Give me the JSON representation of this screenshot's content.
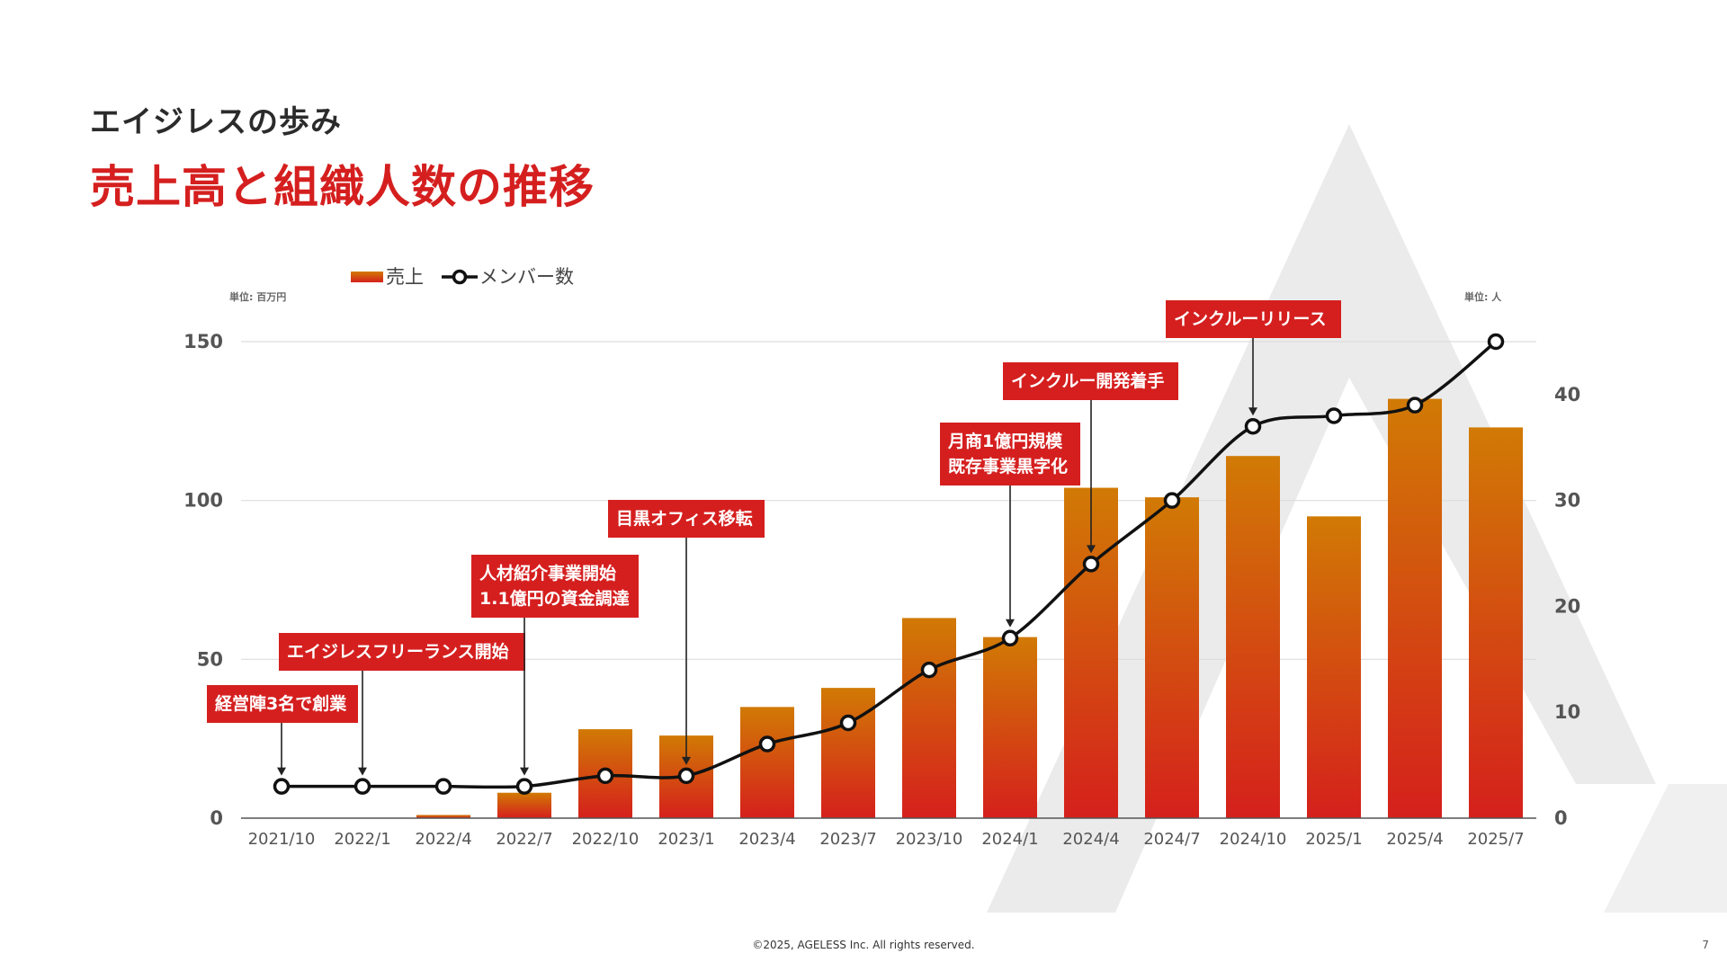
{
  "page": {
    "subtitle": "エイジレスの歩み",
    "title": "売上高と組織人数の推移",
    "footer": "©2025, AGELESS Inc. All rights reserved.",
    "page_number": "7"
  },
  "colors": {
    "title_red": "#d51f1f",
    "bar_top": "#d17a05",
    "bar_bottom": "#d5201c",
    "annotation_bg": "#d51f1f",
    "line": "#111111",
    "watermark": "#ebebeb"
  },
  "chart_data": {
    "type": "bar",
    "legend": {
      "position": "top-left",
      "items": [
        {
          "label": "売上",
          "kind": "bar"
        },
        {
          "label": "メンバー数",
          "kind": "line"
        }
      ]
    },
    "unit_left": "単位: 百万円",
    "unit_right": "単位: 人",
    "categories": [
      "2021/10",
      "2022/1",
      "2022/4",
      "2022/7",
      "2022/10",
      "2023/1",
      "2023/4",
      "2023/7",
      "2023/10",
      "2024/1",
      "2024/4",
      "2024/7",
      "2024/10",
      "2025/1",
      "2025/4",
      "2025/7"
    ],
    "series": [
      {
        "name": "売上",
        "type": "bar",
        "axis": "left",
        "values": [
          0,
          0,
          1,
          8,
          28,
          26,
          35,
          41,
          63,
          57,
          104,
          101,
          114,
          95,
          132,
          123
        ]
      },
      {
        "name": "メンバー数",
        "type": "line",
        "axis": "right",
        "values": [
          3,
          3,
          3,
          3,
          4,
          4,
          7,
          9,
          14,
          17,
          24,
          30,
          37,
          38,
          39,
          45
        ]
      }
    ],
    "y_left": {
      "ylim": [
        0,
        150
      ],
      "ticks": [
        "0",
        "50",
        "100",
        "150"
      ]
    },
    "y_right": {
      "ylim": [
        0,
        45
      ],
      "ticks": [
        "0",
        "10",
        "20",
        "30",
        "40"
      ]
    },
    "grid": true,
    "annotations": [
      {
        "category_index": 0,
        "lines": [
          "経営陣3名で創業"
        ]
      },
      {
        "category_index": 1,
        "lines": [
          "エイジレスフリーランス開始"
        ]
      },
      {
        "category_index": 3,
        "lines": [
          "人材紹介事業開始",
          "1.1億円の資金調達"
        ]
      },
      {
        "category_index": 5,
        "lines": [
          "目黒オフィス移転"
        ]
      },
      {
        "category_index": 9,
        "lines": [
          "月商1億円規模",
          "既存事業黒字化"
        ]
      },
      {
        "category_index": 10,
        "lines": [
          "インクルー開発着手"
        ]
      },
      {
        "category_index": 12,
        "lines": [
          "インクルーリリース"
        ]
      }
    ]
  }
}
